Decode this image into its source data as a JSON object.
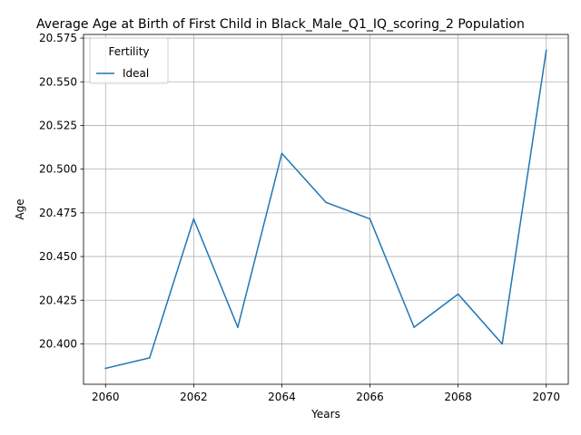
{
  "chart_data": {
    "type": "line",
    "title": "Average Age at Birth of First Child in Black_Male_Q1_IQ_scoring_2 Population",
    "xlabel": "Years",
    "ylabel": "Age",
    "x": [
      2060,
      2061,
      2062,
      2063,
      2064,
      2065,
      2066,
      2067,
      2068,
      2069,
      2070
    ],
    "series": [
      {
        "name": "Ideal",
        "color": "#1f77b4",
        "values": [
          20.386,
          20.392,
          20.4715,
          20.4095,
          20.509,
          20.481,
          20.4715,
          20.4095,
          20.4285,
          20.4,
          20.568
        ]
      }
    ],
    "xlim": [
      2059.5,
      2070.5
    ],
    "ylim": [
      20.3769,
      20.5771
    ],
    "xticks": [
      "2060",
      "2062",
      "2064",
      "2066",
      "2068",
      "2070"
    ],
    "yticks": [
      "20.400",
      "20.425",
      "20.450",
      "20.475",
      "20.500",
      "20.525",
      "20.550",
      "20.575"
    ],
    "grid": true,
    "legend": {
      "title": "Fertility",
      "placement": "upper-left"
    }
  }
}
